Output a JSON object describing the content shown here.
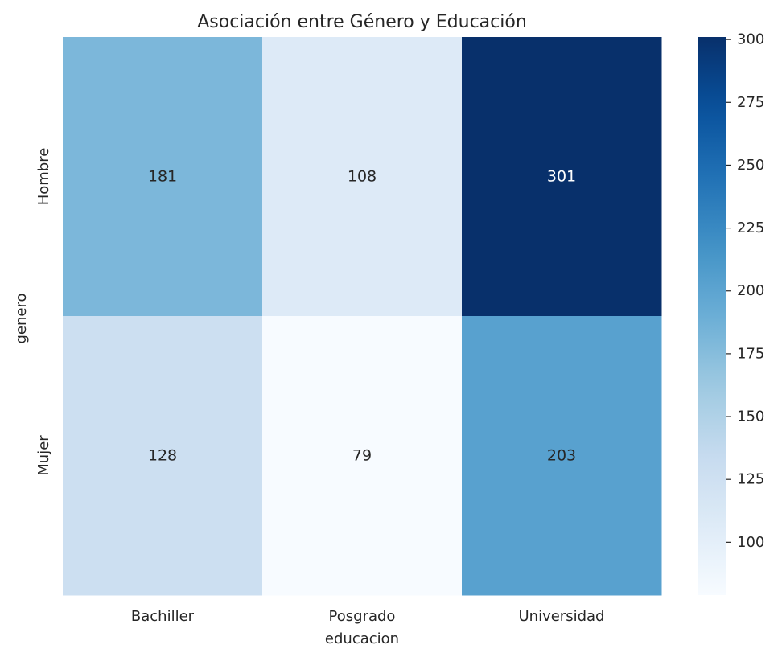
{
  "chart_data": {
    "type": "heatmap",
    "title": "Asociación entre Género y Educación",
    "xlabel": "educacion",
    "ylabel": "genero",
    "x_categories": [
      "Bachiller",
      "Posgrado",
      "Universidad"
    ],
    "y_categories": [
      "Hombre",
      "Mujer"
    ],
    "values": [
      [
        181,
        108,
        301
      ],
      [
        128,
        79,
        203
      ]
    ],
    "colormap": "Blues",
    "colorbar": {
      "min": 79,
      "max": 301,
      "ticks": [
        100,
        125,
        150,
        175,
        200,
        225,
        250,
        275,
        300
      ],
      "tick_labels": [
        "100",
        "125",
        "150",
        "175",
        "200",
        "225",
        "250",
        "275",
        "300"
      ]
    },
    "annotations": true,
    "grid": false
  },
  "colors": {
    "text": "#262626",
    "annotation_light": "#ffffff",
    "annotation_dark": "#262626"
  }
}
